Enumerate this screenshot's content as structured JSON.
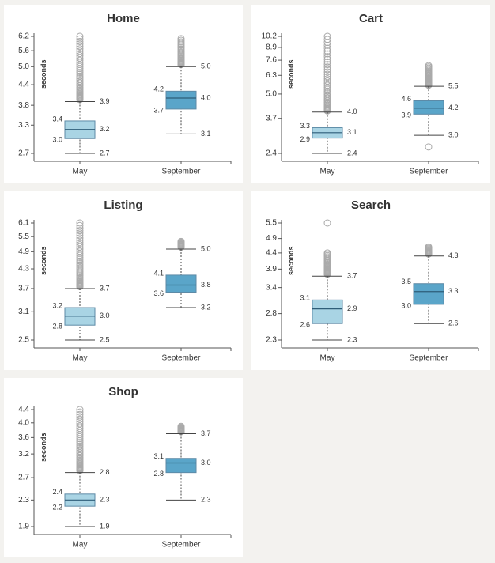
{
  "colors": {
    "may_fill": "#a9d4e4",
    "sept_fill": "#5aa5c9",
    "box_stroke": "#5d8aa6",
    "axis": "#555555",
    "text": "#333333",
    "outlier": "#aaaaaa"
  },
  "chart_data": [
    {
      "type": "box",
      "title": "Home",
      "ylabel": "seconds",
      "scale": "log",
      "ylim": [
        2.7,
        6.2
      ],
      "yticks": [
        "6.2",
        "5.6",
        "5.0",
        "4.4",
        "3.8",
        "3.3",
        "2.7"
      ],
      "categories": [
        "May",
        "September"
      ],
      "boxes": [
        {
          "label": "May",
          "whisker_low": 2.7,
          "q1": 3.0,
          "median": 3.2,
          "q3": 3.4,
          "whisker_high": 3.9,
          "labels": {
            "whisker_low": "2.7",
            "q1": "3.0",
            "median": "3.2",
            "q3": "3.4",
            "whisker_high": "3.9"
          },
          "outlier_max": 6.2,
          "outlier_density": "dense"
        },
        {
          "label": "September",
          "whisker_low": 3.1,
          "q1": 3.7,
          "median": 4.0,
          "q3": 4.2,
          "whisker_high": 5.0,
          "labels": {
            "whisker_low": "3.1",
            "q1": "3.7",
            "median": "4.0",
            "q3": "4.2",
            "whisker_high": "5.0"
          },
          "outlier_max": 6.1,
          "outlier_density": "medium"
        }
      ]
    },
    {
      "type": "box",
      "title": "Cart",
      "ylabel": "seconds",
      "scale": "log",
      "ylim": [
        2.4,
        10.2
      ],
      "yticks": [
        "10.2",
        "8.9",
        "7.6",
        "6.3",
        "5.0",
        "3.7",
        "2.4"
      ],
      "categories": [
        "May",
        "September"
      ],
      "boxes": [
        {
          "label": "May",
          "whisker_low": 2.4,
          "q1": 2.9,
          "median": 3.1,
          "q3": 3.3,
          "whisker_high": 4.0,
          "labels": {
            "whisker_low": "2.4",
            "q1": "2.9",
            "median": "3.1",
            "q3": "3.3",
            "whisker_high": "4.0"
          },
          "outlier_max": 10.2,
          "outlier_density": "dense"
        },
        {
          "label": "September",
          "whisker_low": 3.0,
          "q1": 3.9,
          "median": 4.2,
          "q3": 4.6,
          "whisker_high": 5.5,
          "labels": {
            "whisker_low": "3.0",
            "q1": "3.9",
            "median": "4.2",
            "q3": "4.6",
            "whisker_high": "5.5"
          },
          "outlier_max": 7.1,
          "outlier_min": 2.6,
          "outlier_density": "medium"
        }
      ]
    },
    {
      "type": "box",
      "title": "Listing",
      "ylabel": "seconds",
      "scale": "log",
      "ylim": [
        2.5,
        6.1
      ],
      "yticks": [
        "6.1",
        "5.5",
        "4.9",
        "4.3",
        "3.7",
        "3.1",
        "2.5"
      ],
      "categories": [
        "May",
        "September"
      ],
      "boxes": [
        {
          "label": "May",
          "whisker_low": 2.5,
          "q1": 2.8,
          "median": 3.0,
          "q3": 3.2,
          "whisker_high": 3.7,
          "labels": {
            "whisker_low": "2.5",
            "q1": "2.8",
            "median": "3.0",
            "q3": "3.2",
            "whisker_high": "3.7"
          },
          "outlier_max": 6.1,
          "outlier_density": "dense"
        },
        {
          "label": "September",
          "whisker_low": 3.2,
          "q1": 3.6,
          "median": 3.8,
          "q3": 4.1,
          "whisker_high": 5.0,
          "labels": {
            "whisker_low": "3.2",
            "q1": "3.6",
            "median": "3.8",
            "q3": "4.1",
            "whisker_high": "5.0"
          },
          "outlier_max": 5.3,
          "outlier_density": "light"
        }
      ]
    },
    {
      "type": "box",
      "title": "Search",
      "ylabel": "seconds",
      "scale": "log",
      "ylim": [
        2.3,
        5.5
      ],
      "yticks": [
        "5.5",
        "4.9",
        "4.4",
        "3.9",
        "3.4",
        "2.8",
        "2.3"
      ],
      "categories": [
        "May",
        "September"
      ],
      "boxes": [
        {
          "label": "May",
          "whisker_low": 2.3,
          "q1": 2.6,
          "median": 2.9,
          "q3": 3.1,
          "whisker_high": 3.7,
          "labels": {
            "whisker_low": "2.3",
            "q1": "2.6",
            "median": "2.9",
            "q3": "3.1",
            "whisker_high": "3.7"
          },
          "outlier_max": 4.4,
          "outlier_single": 5.5,
          "outlier_density": "medium"
        },
        {
          "label": "September",
          "whisker_low": 2.6,
          "q1": 3.0,
          "median": 3.3,
          "q3": 3.5,
          "whisker_high": 4.3,
          "labels": {
            "whisker_low": "2.6",
            "q1": "3.0",
            "median": "3.3",
            "q3": "3.5",
            "whisker_high": "4.3"
          },
          "outlier_max": 4.6,
          "outlier_density": "light"
        }
      ]
    },
    {
      "type": "box",
      "title": "Shop",
      "ylabel": "seconds",
      "scale": "log",
      "ylim": [
        1.9,
        4.4
      ],
      "yticks": [
        "4.4",
        "4.0",
        "3.6",
        "3.2",
        "2.7",
        "2.3",
        "1.9"
      ],
      "categories": [
        "May",
        "September"
      ],
      "boxes": [
        {
          "label": "May",
          "whisker_low": 1.9,
          "q1": 2.2,
          "median": 2.3,
          "q3": 2.4,
          "whisker_high": 2.8,
          "labels": {
            "whisker_low": "1.9",
            "q1": "2.2",
            "median": "2.3",
            "q3": "2.4",
            "whisker_high": "2.8"
          },
          "outlier_max": 4.4,
          "outlier_density": "dense"
        },
        {
          "label": "September",
          "whisker_low": 2.3,
          "q1": 2.8,
          "median": 3.0,
          "q3": 3.1,
          "whisker_high": 3.7,
          "labels": {
            "whisker_low": "2.3",
            "q1": "2.8",
            "median": "3.0",
            "q3": "3.1",
            "whisker_high": "3.7"
          },
          "outlier_max": 3.9,
          "outlier_density": "light"
        }
      ]
    }
  ]
}
